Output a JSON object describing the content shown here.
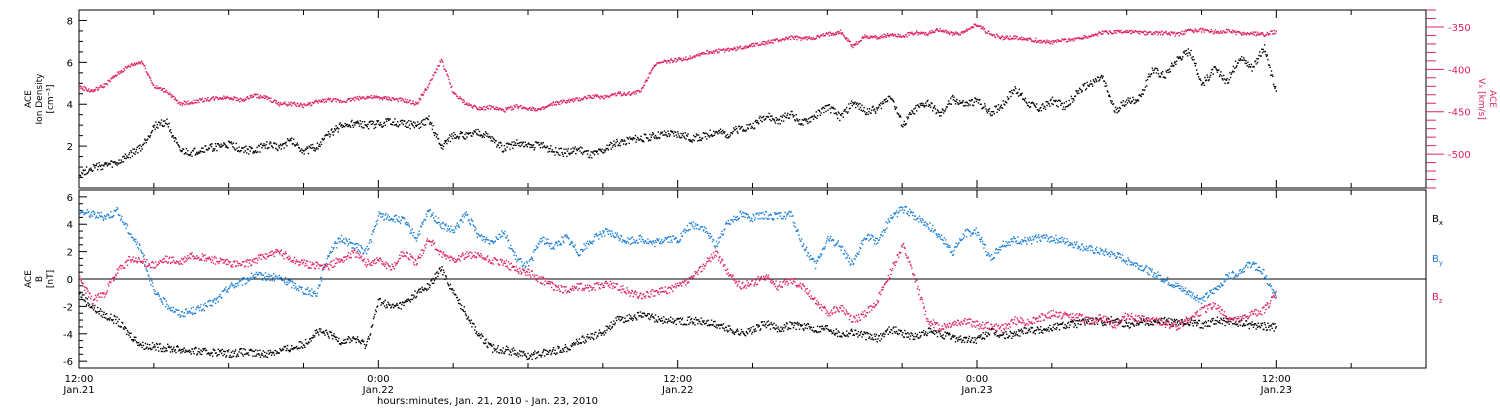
{
  "colors": {
    "black": "#000000",
    "red": "#e0245e",
    "blue": "#1e7fd8"
  },
  "x_axis": {
    "title": "hours:minutes, Jan. 21, 2010 - Jan. 23, 2010",
    "range_hours": [
      0,
      54
    ],
    "ticks": [
      {
        "hour": 0,
        "time": "12:00",
        "date": "Jan.21"
      },
      {
        "hour": 12,
        "time": "0:00",
        "date": "Jan.22"
      },
      {
        "hour": 24,
        "time": "12:00",
        "date": "Jan.22"
      },
      {
        "hour": 36,
        "time": "0:00",
        "date": "Jan.23"
      },
      {
        "hour": 48,
        "time": "12:00",
        "date": "Jan.23"
      }
    ]
  },
  "chart_data": [
    {
      "type": "scatter",
      "panel": "top",
      "left_axis": {
        "label_lines": [
          "ACE",
          "Ion Density",
          "[cm⁻³]"
        ],
        "ylim": [
          0,
          8.5
        ],
        "ticks": [
          2,
          4,
          6,
          8
        ],
        "color": "#000000"
      },
      "right_axis": {
        "label_lines": [
          "ACE",
          "Vₓ [km/s]"
        ],
        "ylim": [
          -540,
          -330
        ],
        "ticks": [
          -350,
          -400,
          -450,
          -500
        ],
        "color": "#e0245e"
      },
      "series": [
        {
          "axis": "left",
          "color": "#000000",
          "x": [
            0,
            0.5,
            1,
            1.5,
            2,
            2.5,
            3,
            3.5,
            4,
            4.5,
            5,
            5.5,
            6,
            6.5,
            7,
            7.5,
            8,
            8.5,
            9,
            9.5,
            10,
            10.5,
            11,
            11.5,
            12,
            12.5,
            13,
            13.5,
            14,
            14.5,
            15,
            15.5,
            16,
            16.5,
            17,
            17.5,
            18,
            18.5,
            19,
            19.5,
            20,
            20.5,
            21,
            21.5,
            22,
            22.5,
            23,
            23.5,
            24,
            24.5,
            25,
            25.5,
            26,
            26.5,
            27,
            27.5,
            28,
            28.5,
            29,
            29.5,
            30,
            30.5,
            31,
            31.5,
            32,
            32.5,
            33,
            33.5,
            34,
            34.5,
            35,
            35.5,
            36,
            36.5,
            37,
            37.5,
            38,
            38.5,
            39,
            39.5,
            40,
            40.5,
            41,
            41.5,
            42,
            42.5,
            43,
            43.5,
            44,
            44.5,
            45,
            45.5,
            46,
            46.5,
            47,
            47.5,
            48
          ],
          "y": [
            0.7,
            1.0,
            1.1,
            1.2,
            1.6,
            2.0,
            3.0,
            3.2,
            1.8,
            1.7,
            1.9,
            2.0,
            2.1,
            1.9,
            1.8,
            2.1,
            2.0,
            2.3,
            1.8,
            2.0,
            2.6,
            3.0,
            3.1,
            3.0,
            3.1,
            3.2,
            3.1,
            3.0,
            3.3,
            2.0,
            2.6,
            2.5,
            2.7,
            2.4,
            1.9,
            2.2,
            2.0,
            2.1,
            1.8,
            1.7,
            1.9,
            1.6,
            1.8,
            2.2,
            2.3,
            2.4,
            2.5,
            2.6,
            2.6,
            2.4,
            2.5,
            2.7,
            2.6,
            2.9,
            3.0,
            3.5,
            3.2,
            3.6,
            3.1,
            3.5,
            3.9,
            3.4,
            4.1,
            3.7,
            3.8,
            4.5,
            3.0,
            3.8,
            4.1,
            3.5,
            4.3,
            4.0,
            4.2,
            3.6,
            4.0,
            4.8,
            4.1,
            3.8,
            4.2,
            3.9,
            4.6,
            5.0,
            5.3,
            3.7,
            4.2,
            4.3,
            5.7,
            5.4,
            6.2,
            6.6,
            5.0,
            5.7,
            5.1,
            6.3,
            5.8,
            6.7,
            4.5
          ]
        },
        {
          "axis": "right",
          "color": "#e0245e",
          "x": [
            0,
            0.5,
            1,
            1.5,
            2,
            2.5,
            3,
            3.5,
            4,
            4.5,
            5,
            5.5,
            6,
            6.5,
            7,
            7.5,
            8,
            8.5,
            9,
            9.5,
            10,
            10.5,
            11,
            11.5,
            12,
            12.5,
            13,
            13.5,
            14,
            14.5,
            15,
            15.5,
            16,
            16.5,
            17,
            17.5,
            18,
            18.5,
            19,
            19.5,
            20,
            20.5,
            21,
            21.5,
            22,
            22.5,
            23,
            23.5,
            24,
            24.5,
            25,
            25.5,
            26,
            26.5,
            27,
            27.5,
            28,
            28.5,
            29,
            29.5,
            30,
            30.5,
            31,
            31.5,
            32,
            32.5,
            33,
            33.5,
            34,
            34.5,
            35,
            35.5,
            36,
            36.5,
            37,
            37.5,
            38,
            38.5,
            39,
            39.5,
            40,
            40.5,
            41,
            41.5,
            42,
            42.5,
            43,
            43.5,
            44,
            44.5,
            45,
            45.5,
            46,
            46.5,
            47,
            47.5,
            48
          ],
          "y": [
            -420,
            -425,
            -418,
            -405,
            -395,
            -390,
            -420,
            -425,
            -440,
            -438,
            -435,
            -433,
            -432,
            -436,
            -430,
            -433,
            -440,
            -440,
            -442,
            -438,
            -435,
            -437,
            -434,
            -432,
            -433,
            -434,
            -436,
            -440,
            -418,
            -388,
            -428,
            -440,
            -445,
            -444,
            -448,
            -443,
            -445,
            -447,
            -440,
            -437,
            -435,
            -431,
            -432,
            -428,
            -428,
            -425,
            -395,
            -390,
            -388,
            -385,
            -380,
            -378,
            -376,
            -374,
            -370,
            -368,
            -365,
            -362,
            -363,
            -362,
            -358,
            -355,
            -372,
            -360,
            -362,
            -358,
            -360,
            -356,
            -357,
            -352,
            -358,
            -355,
            -346,
            -358,
            -362,
            -362,
            -363,
            -366,
            -367,
            -365,
            -363,
            -360,
            -356,
            -355,
            -355,
            -356,
            -357,
            -356,
            -358,
            -354,
            -353,
            -355,
            -354,
            -357,
            -357,
            -358,
            -355
          ]
        }
      ]
    },
    {
      "type": "scatter",
      "panel": "bottom",
      "left_axis": {
        "label_lines": [
          "ACE",
          "B",
          "[nT]"
        ],
        "ylim": [
          -6.5,
          6.5
        ],
        "ticks": [
          -6,
          -4,
          -2,
          0,
          2,
          4,
          6
        ],
        "color": "#000000"
      },
      "zero_line": true,
      "legend_placement": "right",
      "series": [
        {
          "name": "Bx",
          "color": "#000000",
          "x": [
            0,
            0.5,
            1,
            1.5,
            2,
            2.5,
            3,
            3.5,
            4,
            4.5,
            5,
            5.5,
            6,
            6.5,
            7,
            7.5,
            8,
            8.5,
            9,
            9.5,
            10,
            10.5,
            11,
            11.5,
            12,
            12.5,
            13,
            13.5,
            14,
            14.5,
            15,
            15.5,
            16,
            16.5,
            17,
            17.5,
            18,
            18.5,
            19,
            19.5,
            20,
            20.5,
            21,
            21.5,
            22,
            22.5,
            23,
            23.5,
            24,
            24.5,
            25,
            25.5,
            26,
            26.5,
            27,
            27.5,
            28,
            28.5,
            29,
            29.5,
            30,
            30.5,
            31,
            31.5,
            32,
            32.5,
            33,
            33.5,
            34,
            34.5,
            35,
            35.5,
            36,
            36.5,
            37,
            37.5,
            38,
            38.5,
            39,
            39.5,
            40,
            40.5,
            41,
            41.5,
            42,
            42.5,
            43,
            43.5,
            44,
            44.5,
            45,
            45.5,
            46,
            46.5,
            47,
            47.5,
            48
          ],
          "y": [
            -1.0,
            -2.0,
            -2.6,
            -3.0,
            -4.0,
            -4.8,
            -4.9,
            -5.0,
            -5.1,
            -5.2,
            -5.3,
            -5.3,
            -5.4,
            -5.3,
            -5.4,
            -5.4,
            -5.2,
            -5.0,
            -4.7,
            -3.8,
            -4.0,
            -4.5,
            -4.3,
            -4.8,
            -1.5,
            -2.0,
            -1.8,
            -1.0,
            -0.5,
            0.8,
            -1.0,
            -2.5,
            -4.0,
            -5.0,
            -5.1,
            -5.3,
            -5.6,
            -5.4,
            -5.2,
            -5.0,
            -4.5,
            -4.2,
            -3.8,
            -3.0,
            -2.8,
            -2.6,
            -2.8,
            -3.0,
            -3.0,
            -3.0,
            -3.1,
            -3.3,
            -3.6,
            -3.9,
            -3.7,
            -3.2,
            -3.6,
            -3.3,
            -3.4,
            -3.6,
            -3.5,
            -4.0,
            -3.8,
            -4.1,
            -4.3,
            -3.6,
            -3.9,
            -4.2,
            -3.8,
            -4.0,
            -4.2,
            -4.4,
            -4.4,
            -3.8,
            -4.1,
            -4.0,
            -3.6,
            -3.7,
            -3.5,
            -3.3,
            -3.2,
            -3.0,
            -3.1,
            -2.9,
            -3.3,
            -3.0,
            -3.1,
            -3.0,
            -3.2,
            -3.1,
            -3.3,
            -3.0,
            -3.1,
            -3.2,
            -3.3,
            -3.4,
            -3.5
          ]
        },
        {
          "name": "By",
          "color": "#1e7fd8",
          "x": [
            0,
            0.5,
            1,
            1.5,
            2,
            2.5,
            3,
            3.5,
            4,
            4.5,
            5,
            5.5,
            6,
            6.5,
            7,
            7.5,
            8,
            8.5,
            9,
            9.5,
            10,
            10.5,
            11,
            11.5,
            12,
            12.5,
            13,
            13.5,
            14,
            14.5,
            15,
            15.5,
            16,
            16.5,
            17,
            17.5,
            18,
            18.5,
            19,
            19.5,
            20,
            20.5,
            21,
            21.5,
            22,
            22.5,
            23,
            23.5,
            24,
            24.5,
            25,
            25.5,
            26,
            26.5,
            27,
            27.5,
            28,
            28.5,
            29,
            29.5,
            30,
            30.5,
            31,
            31.5,
            32,
            32.5,
            33,
            33.5,
            34,
            34.5,
            35,
            35.5,
            36,
            36.5,
            37,
            37.5,
            38,
            38.5,
            39,
            39.5,
            40,
            40.5,
            41,
            41.5,
            42,
            42.5,
            43,
            43.5,
            44,
            44.5,
            45,
            45.5,
            46,
            46.5,
            47,
            47.5,
            48
          ],
          "y": [
            5.0,
            4.8,
            4.6,
            5.0,
            3.5,
            2.0,
            -1.0,
            -1.8,
            -2.5,
            -2.3,
            -2.0,
            -1.5,
            -0.5,
            -0.2,
            0.3,
            0.2,
            0.1,
            -0.3,
            -0.8,
            -1.0,
            2.0,
            3.0,
            2.5,
            2.0,
            4.7,
            4.5,
            4.3,
            3.0,
            5.0,
            4.0,
            3.5,
            4.8,
            3.2,
            2.8,
            3.5,
            1.5,
            1.0,
            3.0,
            2.4,
            3.1,
            2.0,
            2.8,
            3.5,
            3.2,
            2.8,
            3.0,
            2.6,
            3.0,
            2.9,
            4.0,
            3.8,
            2.5,
            4.2,
            4.8,
            4.5,
            4.7,
            4.6,
            4.8,
            2.5,
            1.0,
            3.0,
            2.5,
            1.0,
            3.2,
            2.8,
            4.5,
            5.2,
            4.6,
            4.0,
            3.2,
            2.0,
            3.4,
            3.5,
            1.5,
            2.6,
            2.9,
            2.8,
            3.1,
            3.0,
            2.8,
            2.5,
            2.2,
            2.0,
            1.8,
            1.4,
            1.0,
            0.5,
            0.0,
            -0.5,
            -1.0,
            -1.5,
            -0.8,
            0.2,
            0.6,
            1.2,
            0.4,
            -1.5
          ]
        },
        {
          "name": "Bz",
          "color": "#e0245e",
          "x": [
            0,
            0.5,
            1,
            1.5,
            2,
            2.5,
            3,
            3.5,
            4,
            4.5,
            5,
            5.5,
            6,
            6.5,
            7,
            7.5,
            8,
            8.5,
            9,
            9.5,
            10,
            10.5,
            11,
            11.5,
            12,
            12.5,
            13,
            13.5,
            14,
            14.5,
            15,
            15.5,
            16,
            16.5,
            17,
            17.5,
            18,
            18.5,
            19,
            19.5,
            20,
            20.5,
            21,
            21.5,
            22,
            22.5,
            23,
            23.5,
            24,
            24.5,
            25,
            25.5,
            26,
            26.5,
            27,
            27.5,
            28,
            28.5,
            29,
            29.5,
            30,
            30.5,
            31,
            31.5,
            32,
            32.5,
            33,
            33.5,
            34,
            34.5,
            35,
            35.5,
            36,
            36.5,
            37,
            37.5,
            38,
            38.5,
            39,
            39.5,
            40,
            40.5,
            41,
            41.5,
            42,
            42.5,
            43,
            43.5,
            44,
            44.5,
            45,
            45.5,
            46,
            46.5,
            47,
            47.5,
            48
          ],
          "y": [
            0.0,
            -1.5,
            -1.0,
            0.5,
            1.5,
            1.3,
            1.0,
            1.5,
            1.2,
            1.8,
            1.6,
            1.4,
            1.2,
            1.0,
            1.4,
            1.8,
            2.0,
            1.5,
            1.2,
            1.0,
            1.0,
            1.5,
            2.0,
            1.2,
            1.5,
            0.8,
            2.0,
            1.2,
            3.0,
            1.8,
            1.5,
            1.8,
            1.7,
            1.4,
            1.2,
            0.8,
            0.5,
            0.0,
            -0.5,
            -0.8,
            -0.5,
            -0.6,
            -0.3,
            -0.5,
            -0.9,
            -1.2,
            -1.0,
            -0.8,
            -0.5,
            0.0,
            1.0,
            2.0,
            0.5,
            -0.5,
            -0.2,
            0.2,
            -0.5,
            0.0,
            -0.5,
            -1.5,
            -2.5,
            -2.0,
            -3.0,
            -2.5,
            -1.5,
            0.5,
            2.5,
            0.0,
            -3.0,
            -3.5,
            -3.2,
            -3.0,
            -3.3,
            -3.4,
            -3.6,
            -3.0,
            -3.1,
            -2.8,
            -2.5,
            -2.6,
            -2.7,
            -3.0,
            -2.8,
            -3.3,
            -2.6,
            -2.9,
            -3.0,
            -3.2,
            -3.4,
            -2.8,
            -2.3,
            -1.8,
            -2.8,
            -3.0,
            -2.5,
            -2.2,
            -1.0
          ]
        }
      ]
    }
  ]
}
